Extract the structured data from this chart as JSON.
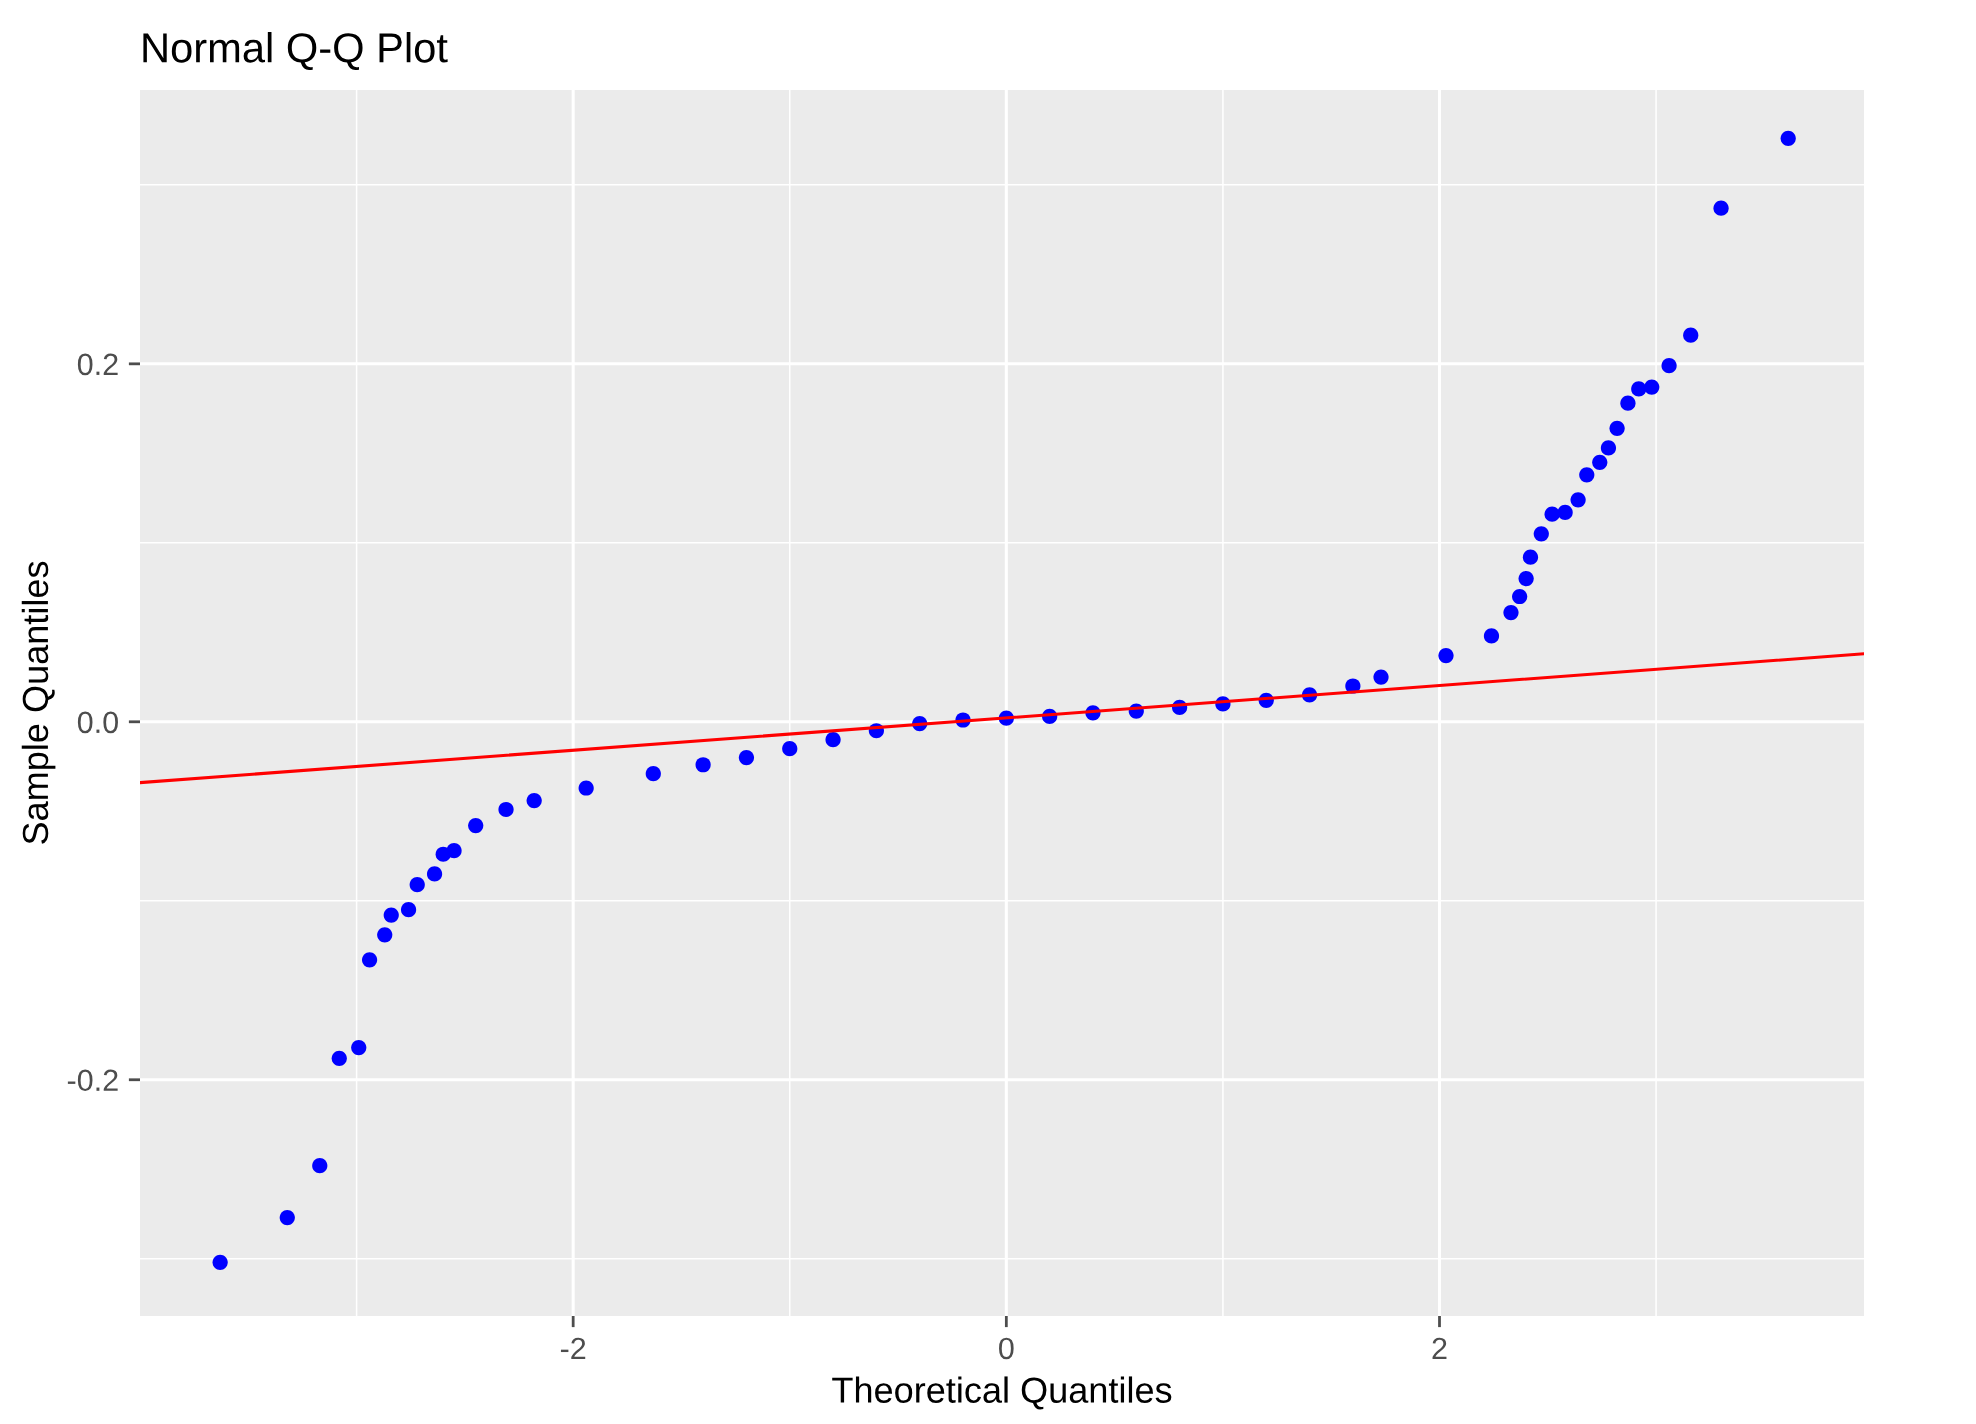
{
  "chart_data": {
    "type": "scatter",
    "title": "Normal Q-Q Plot",
    "xlabel": "Theoretical Quantiles",
    "ylabel": "Sample Quantiles",
    "xlim": [
      -4.0,
      3.96
    ],
    "ylim": [
      -0.332,
      0.353
    ],
    "xticks": [
      {
        "value": -3,
        "label": null
      },
      -2,
      {
        "value": -1,
        "label": null
      },
      0,
      {
        "value": 1,
        "label": null
      },
      2,
      {
        "value": 3,
        "label": null
      }
    ],
    "yticks": [
      {
        "value": -0.3,
        "label": null
      },
      -0.2,
      {
        "value": -0.1,
        "label": null
      },
      {
        "value": 0,
        "label": "0.0"
      },
      {
        "value": 0.1,
        "label": null
      },
      0.2,
      {
        "value": 0.3,
        "label": null
      }
    ],
    "grid": true,
    "legend": false,
    "marker": "circle",
    "series": [
      {
        "color": "#0000ff",
        "x": [
          -3.63,
          -3.32,
          -3.17,
          -3.08,
          -2.99,
          -2.94,
          -2.87,
          -2.84,
          -2.76,
          -2.72,
          -2.64,
          -2.6,
          -2.55,
          -2.45,
          -2.31,
          -2.18,
          -1.94,
          -1.63,
          -1.4,
          -1.2,
          -1.0,
          -0.8,
          -0.6,
          -0.4,
          -0.2,
          0.0,
          0.2,
          0.4,
          0.6,
          0.8,
          1.0,
          1.2,
          1.4,
          1.6,
          1.73,
          2.03,
          2.24,
          2.33,
          2.37,
          2.4,
          2.42,
          2.47,
          2.52,
          2.58,
          2.64,
          2.68,
          2.74,
          2.78,
          2.82,
          2.87,
          2.92,
          2.98,
          3.06,
          3.16,
          3.3,
          3.61
        ],
        "values": [
          -0.302,
          -0.277,
          -0.248,
          -0.188,
          -0.182,
          -0.133,
          -0.119,
          -0.108,
          -0.105,
          -0.091,
          -0.085,
          -0.074,
          -0.072,
          -0.058,
          -0.049,
          -0.044,
          -0.037,
          -0.029,
          -0.024,
          -0.02,
          -0.015,
          -0.01,
          -0.005,
          -0.001,
          0.001,
          0.002,
          0.003,
          0.005,
          0.006,
          0.008,
          0.01,
          0.012,
          0.015,
          0.02,
          0.025,
          0.037,
          0.048,
          0.061,
          0.07,
          0.08,
          0.092,
          0.105,
          0.116,
          0.117,
          0.124,
          0.138,
          0.145,
          0.153,
          0.164,
          0.178,
          0.186,
          0.187,
          0.199,
          0.216,
          0.287,
          0.326
        ]
      },
      {
        "type": "line",
        "marker": "none",
        "color": "#ff0000",
        "x": [
          -4.0,
          3.96
        ],
        "values": [
          -0.034,
          0.038
        ]
      }
    ]
  }
}
